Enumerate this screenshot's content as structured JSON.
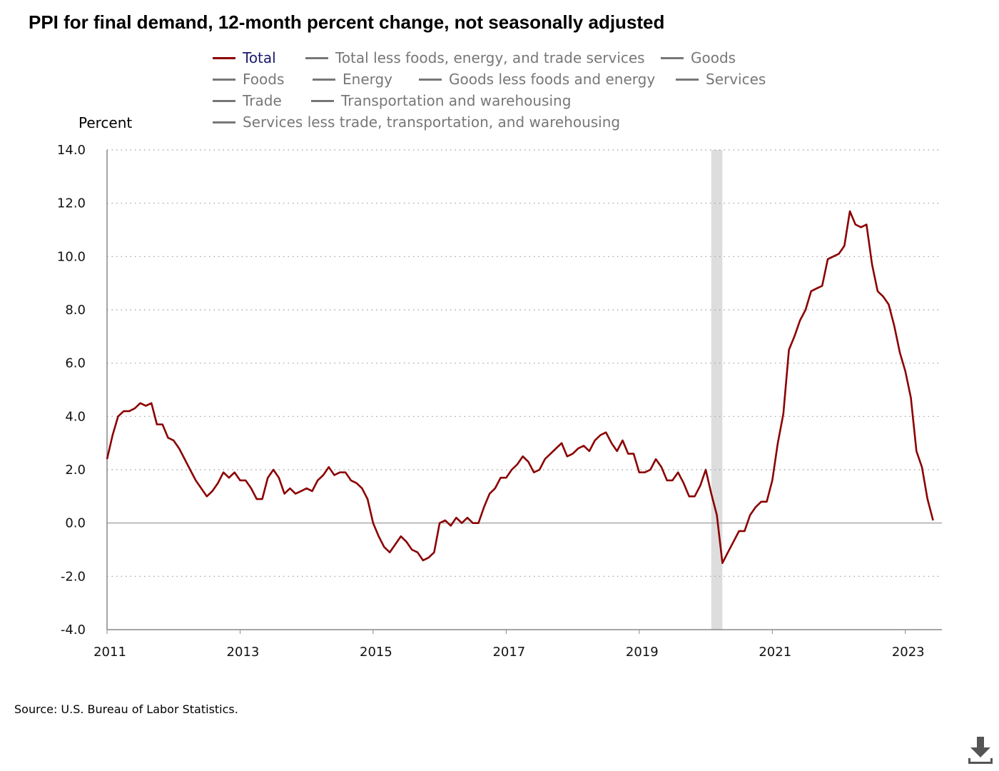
{
  "chart_data": {
    "type": "line",
    "title": "PPI for final demand, 12-month percent change, not seasonally adjusted",
    "ylabel": "Percent",
    "xlabel": "",
    "ylim": [
      -4.0,
      14.0
    ],
    "yticks": [
      "14.0",
      "12.0",
      "10.0",
      "8.0",
      "6.0",
      "4.0",
      "2.0",
      "0.0",
      "-2.0",
      "-4.0"
    ],
    "xticks": [
      "2011",
      "2013",
      "2015",
      "2017",
      "2019",
      "2021",
      "2023"
    ],
    "grid": "horizontal dotted",
    "recession_shading": [
      "2020-02",
      "2020-04"
    ],
    "legend": [
      {
        "label": "Total",
        "active": true
      },
      {
        "label": "Total less foods, energy, and trade services",
        "active": false
      },
      {
        "label": "Goods",
        "active": false
      },
      {
        "label": "Foods",
        "active": false
      },
      {
        "label": "Energy",
        "active": false
      },
      {
        "label": "Goods less foods and energy",
        "active": false
      },
      {
        "label": "Services",
        "active": false
      },
      {
        "label": "Trade",
        "active": false
      },
      {
        "label": "Transportation and warehousing",
        "active": false
      },
      {
        "label": "Services less trade, transportation, and warehousing",
        "active": false
      }
    ],
    "series": [
      {
        "name": "Total",
        "color": "#8b0000",
        "start": "2011-01",
        "frequency": "monthly",
        "values": [
          2.4,
          3.3,
          4.0,
          4.2,
          4.2,
          4.3,
          4.5,
          4.4,
          4.5,
          3.7,
          3.7,
          3.2,
          3.1,
          2.8,
          2.4,
          2.0,
          1.6,
          1.3,
          1.0,
          1.2,
          1.5,
          1.9,
          1.7,
          1.9,
          1.6,
          1.6,
          1.3,
          0.9,
          0.9,
          1.7,
          2.0,
          1.7,
          1.1,
          1.3,
          1.1,
          1.2,
          1.3,
          1.2,
          1.6,
          1.8,
          2.1,
          1.8,
          1.9,
          1.9,
          1.6,
          1.5,
          1.3,
          0.9,
          0.0,
          -0.5,
          -0.9,
          -1.1,
          -0.8,
          -0.5,
          -0.7,
          -1.0,
          -1.1,
          -1.4,
          -1.3,
          -1.1,
          0.0,
          0.1,
          -0.1,
          0.2,
          0.0,
          0.2,
          0.0,
          0.0,
          0.6,
          1.1,
          1.3,
          1.7,
          1.7,
          2.0,
          2.2,
          2.5,
          2.3,
          1.9,
          2.0,
          2.4,
          2.6,
          2.8,
          3.0,
          2.5,
          2.6,
          2.8,
          2.9,
          2.7,
          3.1,
          3.3,
          3.4,
          3.0,
          2.7,
          3.1,
          2.6,
          2.6,
          1.9,
          1.9,
          2.0,
          2.4,
          2.1,
          1.6,
          1.6,
          1.9,
          1.5,
          1.0,
          1.0,
          1.4,
          2.0,
          1.1,
          0.3,
          -1.5,
          -1.1,
          -0.7,
          -0.3,
          -0.3,
          0.3,
          0.6,
          0.8,
          0.8,
          1.6,
          3.0,
          4.1,
          6.5,
          7.0,
          7.6,
          8.0,
          8.7,
          8.8,
          8.9,
          9.9,
          10.0,
          10.1,
          10.4,
          11.7,
          11.2,
          11.1,
          11.2,
          9.7,
          8.7,
          8.5,
          8.2,
          7.4,
          6.4,
          5.7,
          4.7,
          2.7,
          2.1,
          0.9,
          0.1
        ]
      }
    ]
  },
  "source": "Source: U.S. Bureau of Labor Statistics.",
  "download_icon": "download-arrow-icon"
}
